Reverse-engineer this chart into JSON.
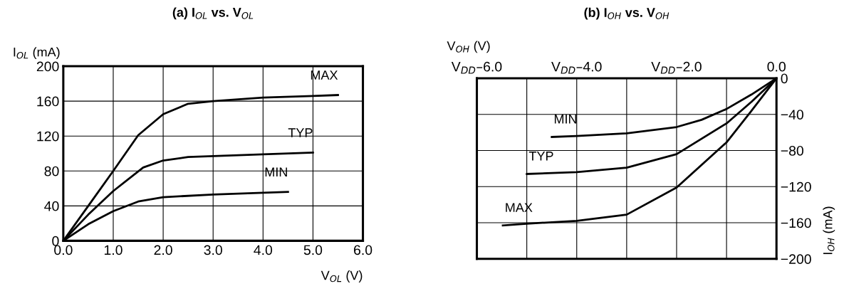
{
  "chart_data": [
    {
      "type": "line",
      "title": "(a) I$_{OL}$ vs. V$_{OL}$",
      "xlabel": "V$_{OL}$ (V)",
      "ylabel": "I$_{OL}$ (mA)",
      "xlim": [
        0,
        6
      ],
      "ylim": [
        0,
        200
      ],
      "xticks": [
        {
          "value": 0,
          "label": "0.0"
        },
        {
          "value": 1,
          "label": "1.0"
        },
        {
          "value": 2,
          "label": "2.0"
        },
        {
          "value": 3,
          "label": "3.0"
        },
        {
          "value": 4,
          "label": "4.0"
        },
        {
          "value": 5,
          "label": "5.0"
        },
        {
          "value": 6,
          "label": "6.0"
        }
      ],
      "yticks": [
        0,
        40,
        80,
        120,
        160,
        200
      ],
      "grid": true,
      "legend": false,
      "marker": "none",
      "line_style": "solid",
      "series": [
        {
          "name": "MAX",
          "color": "#000000",
          "x": [
            0,
            0.5,
            1.0,
            1.5,
            2.0,
            2.5,
            3.0,
            4.0,
            5.0,
            5.5
          ],
          "values": [
            0,
            40,
            80,
            121,
            145,
            157,
            160,
            164,
            166,
            167
          ]
        },
        {
          "name": "TYP",
          "color": "#000000",
          "x": [
            0,
            0.5,
            1.0,
            1.6,
            2.0,
            2.5,
            3.0,
            4.0,
            5.0
          ],
          "values": [
            0,
            30,
            57,
            84,
            92,
            96,
            97,
            99,
            101
          ]
        },
        {
          "name": "MIN",
          "color": "#000000",
          "x": [
            0,
            0.5,
            1.0,
            1.5,
            2.0,
            3.0,
            4.0,
            4.5
          ],
          "values": [
            0,
            19,
            34,
            45,
            50,
            53,
            55,
            56
          ]
        }
      ]
    },
    {
      "type": "line",
      "title": "(b) I$_{OH}$ vs. V$_{OH}$",
      "xlabel": "V$_{OH}$ (V)",
      "ylabel": "I$_{OH}$ (mA)",
      "xlim": [
        -6,
        0
      ],
      "ylim": [
        -200,
        0
      ],
      "xticks": [
        {
          "value": -6,
          "label": "V$_{DD}$–6.0"
        },
        {
          "value": -5,
          "label": null
        },
        {
          "value": -4,
          "label": "V$_{DD}$–4.0"
        },
        {
          "value": -3,
          "label": null
        },
        {
          "value": -2,
          "label": "V$_{DD}$–2.0"
        },
        {
          "value": -1,
          "label": null
        },
        {
          "value": 0,
          "label": "0.0"
        }
      ],
      "yticks": [
        {
          "value": -200,
          "label": "−200"
        },
        {
          "value": -160,
          "label": "−160"
        },
        {
          "value": -120,
          "label": "−120"
        },
        {
          "value": -80,
          "label": "−80"
        },
        {
          "value": -40,
          "label": "−40"
        },
        0
      ],
      "grid": true,
      "legend": false,
      "marker": "none",
      "line_style": "solid",
      "series": [
        {
          "name": "MIN",
          "color": "#000000",
          "x": [
            -4.5,
            -4.0,
            -3.0,
            -2.0,
            -1.5,
            -1.0,
            -0.5,
            0
          ],
          "values": [
            -65,
            -64,
            -61,
            -54,
            -46,
            -34,
            -18,
            0
          ]
        },
        {
          "name": "TYP",
          "color": "#000000",
          "x": [
            -5.0,
            -4.0,
            -3.0,
            -2.0,
            -1.0,
            -0.5,
            0
          ],
          "values": [
            -106,
            -104,
            -99,
            -84,
            -50,
            -26,
            0
          ]
        },
        {
          "name": "MAX",
          "color": "#000000",
          "x": [
            -5.48,
            -5.0,
            -4.0,
            -3.0,
            -2.0,
            -1.0,
            -0.5,
            0
          ],
          "values": [
            -163,
            -161,
            -158,
            -151,
            -121,
            -71,
            -36,
            0
          ]
        }
      ]
    }
  ]
}
